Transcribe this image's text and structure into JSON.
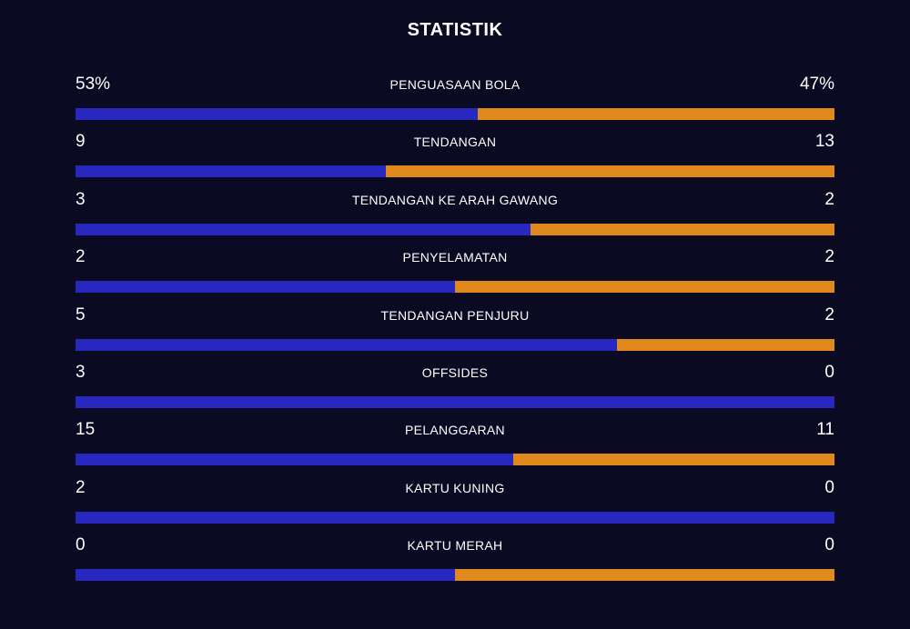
{
  "title": "STATISTIK",
  "colors": {
    "background": "#0a0a23",
    "home": "#2828c0",
    "away": "#e08a1e"
  },
  "stats": [
    {
      "name": "PENGUASAAN BOLA",
      "home": "53%",
      "away": "47%",
      "home_share": 0.53
    },
    {
      "name": "TENDANGAN",
      "home": "9",
      "away": "13",
      "home_share": 0.409
    },
    {
      "name": "TENDANGAN KE ARAH GAWANG",
      "home": "3",
      "away": "2",
      "home_share": 0.6
    },
    {
      "name": "PENYELAMATAN",
      "home": "2",
      "away": "2",
      "home_share": 0.5
    },
    {
      "name": "TENDANGAN PENJURU",
      "home": "5",
      "away": "2",
      "home_share": 0.714
    },
    {
      "name": "OFFSIDES",
      "home": "3",
      "away": "0",
      "home_share": 1.0
    },
    {
      "name": "PELANGGARAN",
      "home": "15",
      "away": "11",
      "home_share": 0.577
    },
    {
      "name": "KARTU KUNING",
      "home": "2",
      "away": "0",
      "home_share": 1.0
    },
    {
      "name": "KARTU MERAH",
      "home": "0",
      "away": "0",
      "home_share": 0.5
    }
  ]
}
